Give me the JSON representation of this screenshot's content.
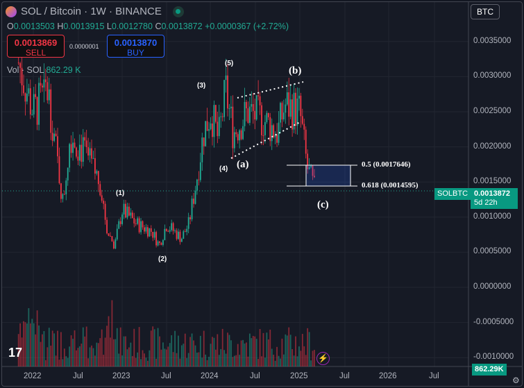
{
  "header": {
    "title": "SOL / Bitcoin · 1W · BINANCE"
  },
  "ohlc": {
    "o_label": "O",
    "o": "0.0013503",
    "h_label": "H",
    "h": "0.0013915",
    "l_label": "L",
    "l": "0.0012780",
    "c_label": "C",
    "c": "0.0013872",
    "change": "+0.0000367 (+2.72%)"
  },
  "trade": {
    "sell_price": "0.0013869",
    "sell_label": "SELL",
    "spread": "0.0000001",
    "buy_price": "0.0013870",
    "buy_label": "BUY"
  },
  "volume": {
    "label": "Vol · SOL",
    "value": "862.29 K",
    "axis_tag": "862.29K"
  },
  "currency_button": "BTC",
  "price_tag": {
    "symbol": "SOLBTC",
    "price": "0.0013872",
    "countdown": "5d 22h"
  },
  "y_axis": [
    "0.0035000",
    "0.0030000",
    "0.0025000",
    "0.0020000",
    "0.0015000",
    "0.0010000",
    "0.0005000",
    "0.0000000",
    "-0.0005000",
    "-0.0010000"
  ],
  "x_axis": [
    "2022",
    "Jul",
    "2023",
    "Jul",
    "2024",
    "Jul",
    "2025",
    "Jul",
    "2026",
    "Jul"
  ],
  "annotations": {
    "w1": "(1)",
    "w2": "(2)",
    "w3": "(3)",
    "w4": "(4)",
    "w5": "(5)",
    "a": "(a)",
    "b": "(b)",
    "c": "(c)"
  },
  "fib": {
    "f05": "0.5 (0.0017646)",
    "f0618": "0.618 (0.0014595)"
  },
  "colors": {
    "up": "#22ab94",
    "down": "#f23645",
    "bg": "#161a25",
    "accent": "#089981"
  },
  "price_path_approx": [
    [
      "2021-11",
      0.0032
    ],
    [
      "2022-01",
      0.0025
    ],
    [
      "2022-03",
      0.0028
    ],
    [
      "2022-05",
      0.0012
    ],
    [
      "2022-06",
      0.0022
    ],
    [
      "2022-08",
      0.0019
    ],
    [
      "2022-10",
      0.0015
    ],
    [
      "2022-11",
      0.0008
    ],
    [
      "2022-12",
      0.0006
    ],
    [
      "2023-01",
      0.0011
    ],
    [
      "2023-03",
      0.0009
    ],
    [
      "2023-05",
      0.0008
    ],
    [
      "2023-06",
      0.0006
    ],
    [
      "2023-07",
      0.0009
    ],
    [
      "2023-09",
      0.0007
    ],
    [
      "2023-10",
      0.0009
    ],
    [
      "2023-11",
      0.0015
    ],
    [
      "2023-12",
      0.0022
    ],
    [
      "2024-01",
      0.0025
    ],
    [
      "2024-02",
      0.0021
    ],
    [
      "2024-03",
      0.0028
    ],
    [
      "2024-04",
      0.0022
    ],
    [
      "2024-06",
      0.0025
    ],
    [
      "2024-08",
      0.0024
    ],
    [
      "2024-10",
      0.0022
    ],
    [
      "2024-11",
      0.0026
    ],
    [
      "2025-01",
      0.0025
    ],
    [
      "2025-02",
      0.0017
    ],
    [
      "2025-03",
      0.0014
    ]
  ]
}
